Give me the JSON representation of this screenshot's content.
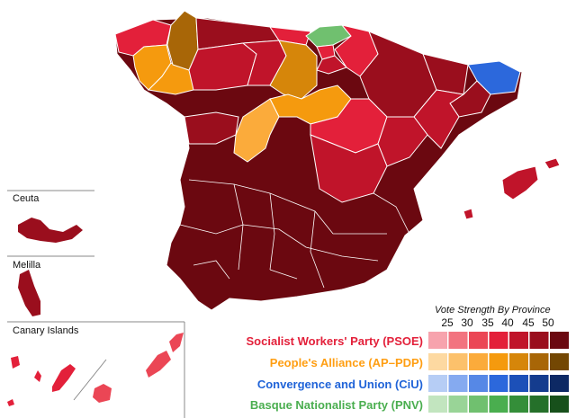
{
  "insets": {
    "ceuta": "Ceuta",
    "melilla": "Melilla",
    "canary": "Canary Islands"
  },
  "legend": {
    "title": "Vote Strength By Province",
    "ticks": [
      "25",
      "30",
      "35",
      "40",
      "45",
      "50"
    ],
    "parties": [
      {
        "name": "Socialist Workers' Party (PSOE)",
        "label_color": "#e3203a",
        "swatches": [
          "#f7a3ad",
          "#f2737f",
          "#eb4655",
          "#e3203a",
          "#c0142a",
          "#9a0e1d",
          "#6b0810"
        ]
      },
      {
        "name": "People's Alliance (AP–PDP)",
        "label_color": "#ff9e12",
        "swatches": [
          "#fdd9a1",
          "#fcc16b",
          "#fbab3b",
          "#f59a0e",
          "#d6860a",
          "#a86607",
          "#734703"
        ]
      },
      {
        "name": "Convergence and Union (CiU)",
        "label_color": "#1f63d8",
        "swatches": [
          "#b6cdf5",
          "#85aaf0",
          "#5688e6",
          "#2c68dc",
          "#1c50b8",
          "#143c8e",
          "#0d2964"
        ]
      },
      {
        "name": "Basque Nationalist Party (PNV)",
        "label_color": "#4aae4f",
        "swatches": [
          "#c2e5bf",
          "#99d497",
          "#70c06f",
          "#4aae4f",
          "#348e39",
          "#25702a",
          "#17501b"
        ]
      }
    ]
  }
}
